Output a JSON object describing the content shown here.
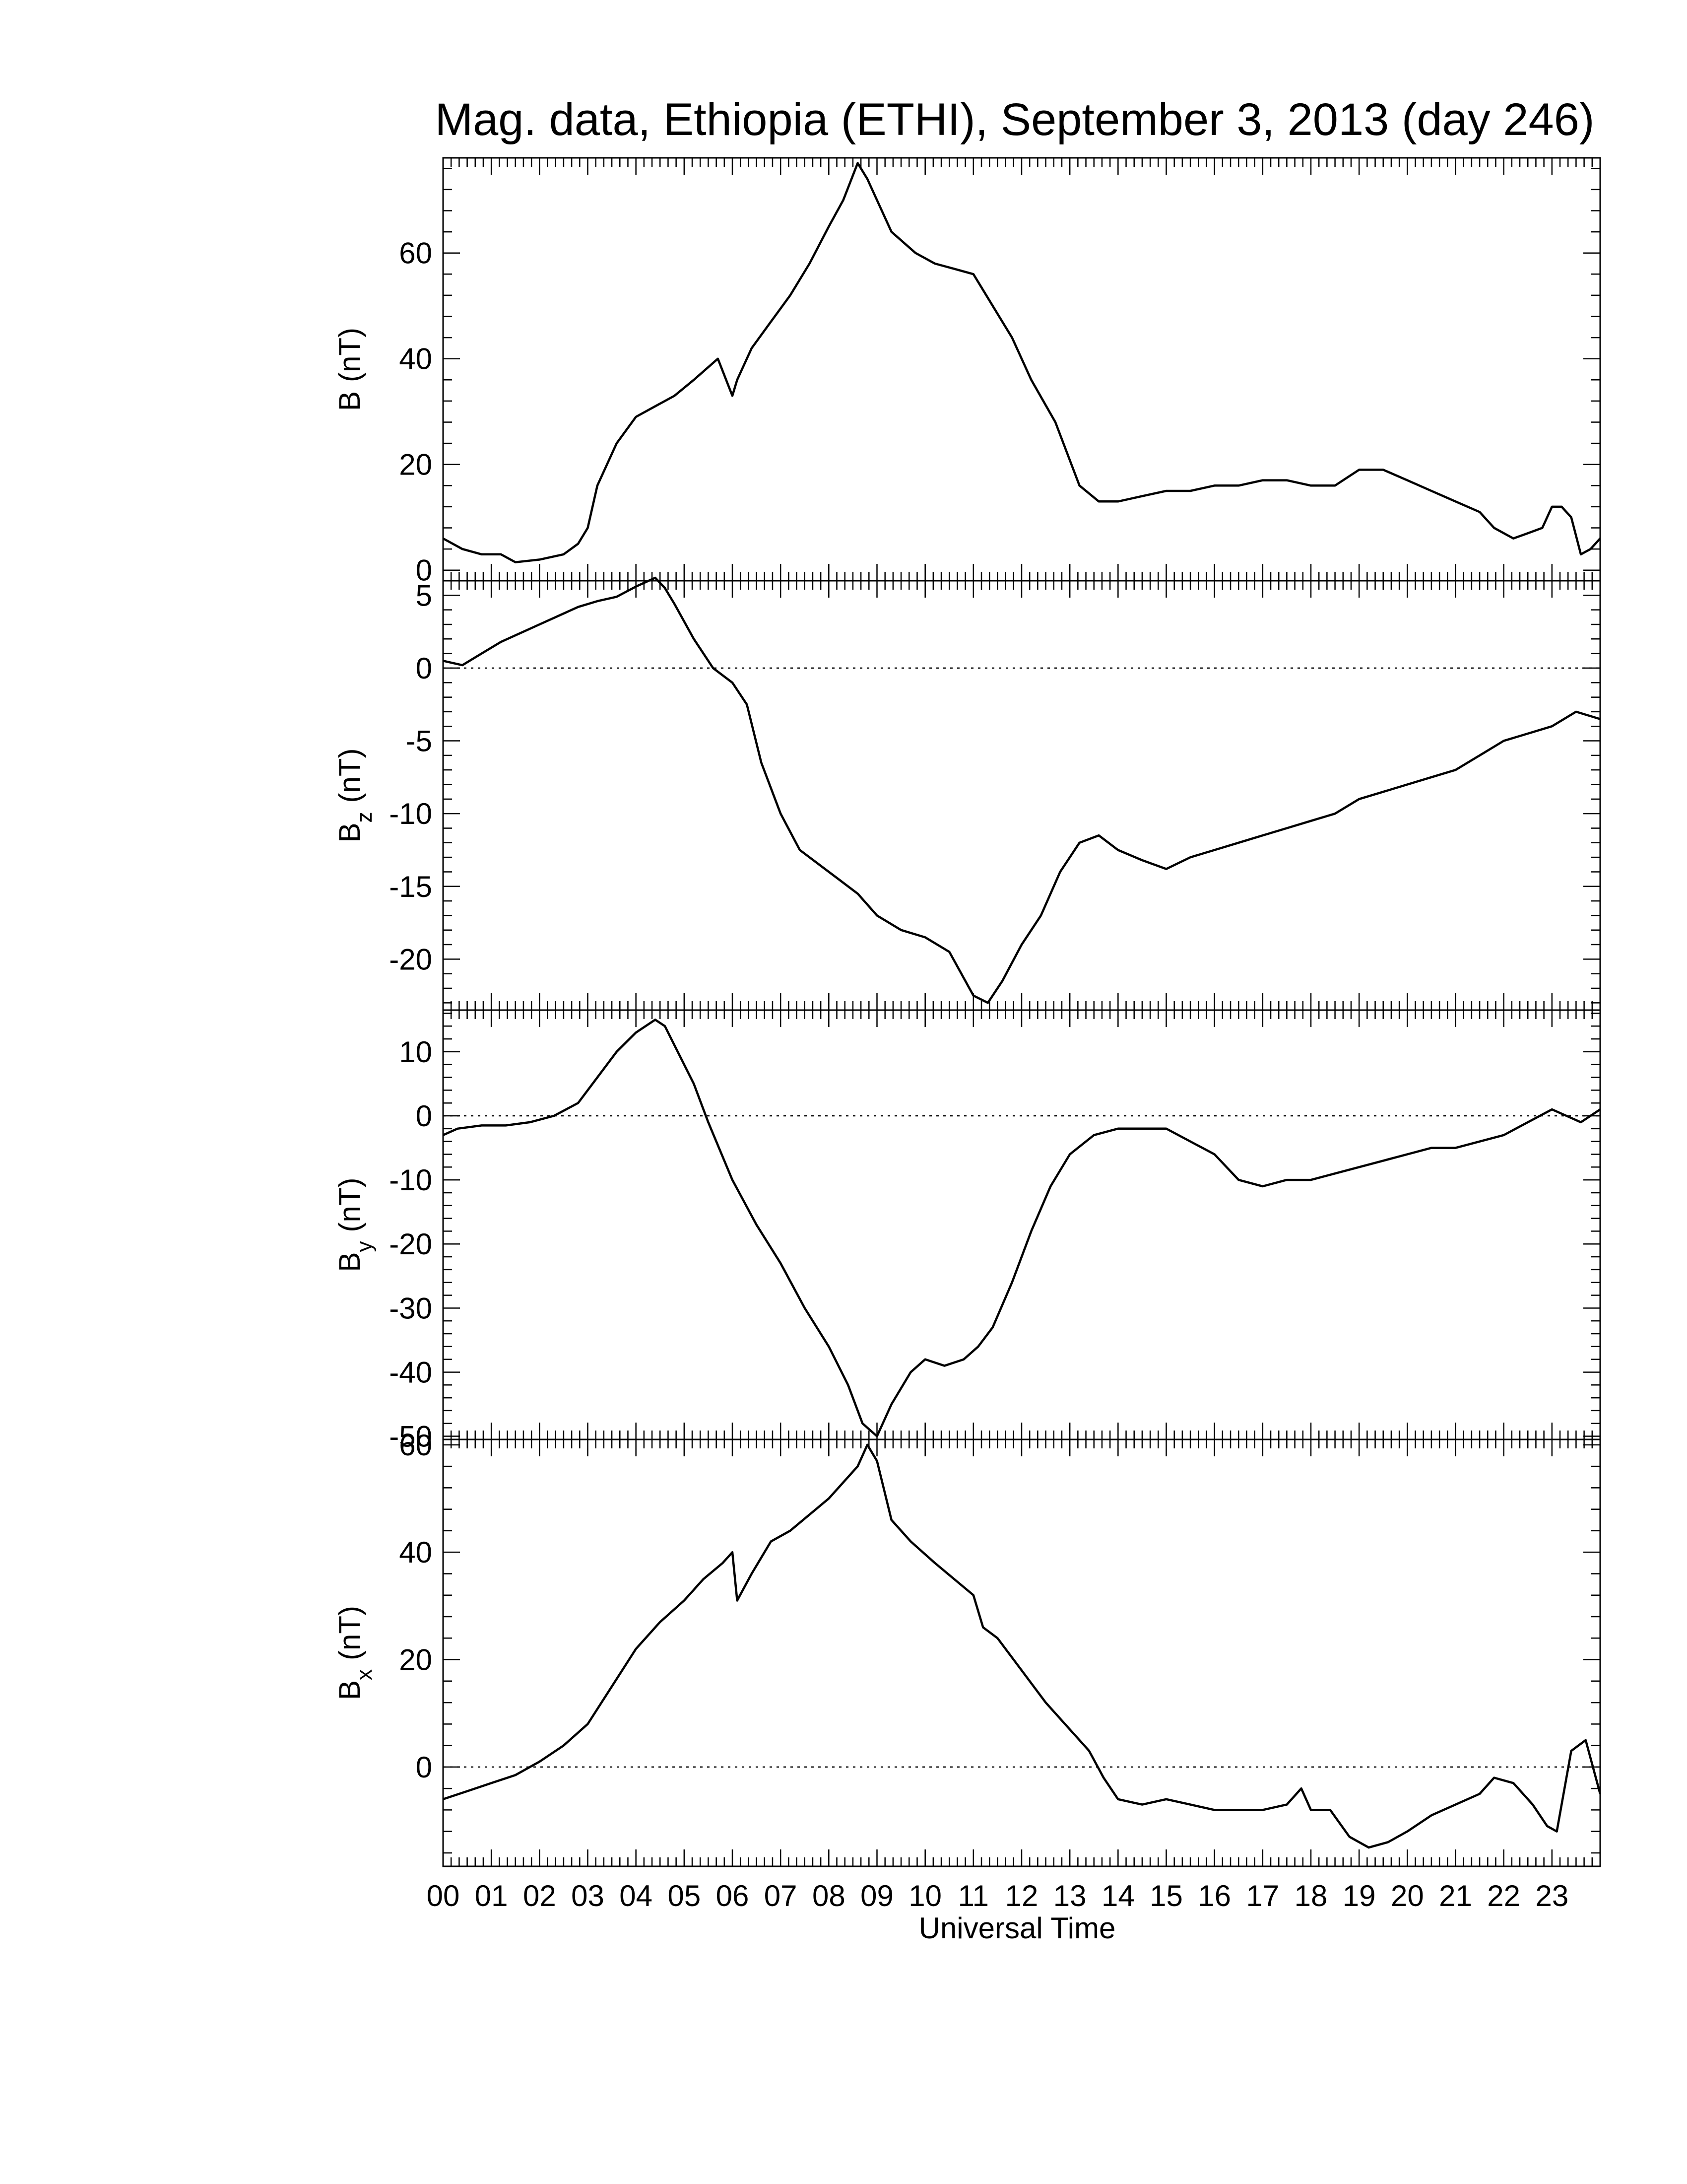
{
  "chart_data": {
    "type": "line",
    "title": "Mag. data, Ethiopia (ETHI), September 3, 2013 (day 246)",
    "xlabel": "Universal Time",
    "x_range": [
      0,
      24
    ],
    "x_tick_labels": [
      "00",
      "01",
      "02",
      "03",
      "04",
      "05",
      "06",
      "07",
      "08",
      "09",
      "10",
      "11",
      "12",
      "13",
      "14",
      "15",
      "16",
      "17",
      "18",
      "19",
      "20",
      "21",
      "22",
      "23"
    ],
    "panels": [
      {
        "id": "B",
        "ylabel_main": "B",
        "ylabel_sub": "",
        "ylabel_unit": "(nT)",
        "ylim": [
          -2,
          78
        ],
        "yticks": [
          0,
          20,
          40,
          60
        ],
        "ytick_labels": [
          "0",
          "20",
          "40",
          "60"
        ],
        "zero_line": false,
        "series": [
          {
            "x": [
              0,
              0.4,
              0.8,
              1.2,
              1.5,
              2,
              2.5,
              2.8,
              3,
              3.2,
              3.6,
              4,
              4.4,
              4.8,
              5.2,
              5.7,
              6,
              6.1,
              6.4,
              6.8,
              7.2,
              7.6,
              8,
              8.3,
              8.6,
              8.8,
              9,
              9.3,
              9.8,
              10.2,
              10.6,
              11,
              11.4,
              11.8,
              12.2,
              12.7,
              13.2,
              13.6,
              14,
              14.5,
              15,
              15.5,
              16,
              16.5,
              17,
              17.5,
              18,
              18.5,
              19,
              19.5,
              20,
              20.5,
              21,
              21.5,
              21.8,
              22.2,
              22.5,
              22.8,
              23,
              23.2,
              23.4,
              23.6,
              23.8,
              24
            ],
            "y": [
              6,
              4,
              3,
              3,
              1.5,
              2,
              3,
              5,
              8,
              16,
              24,
              29,
              31,
              33,
              36,
              40,
              33,
              36,
              42,
              47,
              52,
              58,
              65,
              70,
              77,
              74,
              70,
              64,
              60,
              58,
              57,
              56,
              50,
              44,
              36,
              28,
              16,
              13,
              13,
              14,
              15,
              15,
              16,
              16,
              17,
              17,
              16,
              16,
              19,
              19,
              17,
              15,
              13,
              11,
              8,
              6,
              7,
              8,
              12,
              12,
              10,
              3,
              4,
              6
            ]
          }
        ]
      },
      {
        "id": "Bz",
        "ylabel_main": "B",
        "ylabel_sub": "z",
        "ylabel_unit": "(nT)",
        "ylim": [
          -23.5,
          6
        ],
        "yticks": [
          5,
          0,
          -5,
          -10,
          -15,
          -20
        ],
        "ytick_labels": [
          "5",
          "0",
          "-5",
          "-10",
          "-15",
          "-20"
        ],
        "zero_line": true,
        "series": [
          {
            "x": [
              0,
              0.4,
              0.8,
              1.2,
              1.6,
              2,
              2.4,
              2.8,
              3.2,
              3.6,
              4,
              4.4,
              4.6,
              4.8,
              5.2,
              5.6,
              6,
              6.3,
              6.6,
              7,
              7.4,
              7.8,
              8.2,
              8.6,
              9,
              9.5,
              10,
              10.5,
              11,
              11.3,
              11.6,
              12,
              12.4,
              12.8,
              13.2,
              13.6,
              14,
              14.5,
              15,
              15.5,
              16,
              16.5,
              17,
              17.5,
              18,
              18.5,
              19,
              19.5,
              20,
              20.5,
              21,
              21.5,
              22,
              22.5,
              23,
              23.5,
              24
            ],
            "y": [
              0.5,
              0.2,
              1,
              1.8,
              2.4,
              3,
              3.6,
              4.2,
              4.6,
              4.9,
              5.6,
              6.2,
              5.5,
              4.4,
              2,
              0,
              -1,
              -2.5,
              -6.5,
              -10,
              -12.5,
              -13.5,
              -14.5,
              -15.5,
              -17,
              -18,
              -18.5,
              -19.5,
              -22.5,
              -23,
              -21.5,
              -19,
              -17,
              -14,
              -12,
              -11.5,
              -12.5,
              -13.2,
              -13.8,
              -13,
              -12.5,
              -12,
              -11.5,
              -11,
              -10.5,
              -10,
              -9,
              -8.5,
              -8,
              -7.5,
              -7,
              -6,
              -5,
              -4.5,
              -4,
              -3,
              -3.5
            ]
          }
        ]
      },
      {
        "id": "By",
        "ylabel_main": "B",
        "ylabel_sub": "y",
        "ylabel_unit": "(nT)",
        "ylim": [
          -50.5,
          16.5
        ],
        "yticks": [
          10,
          0,
          -10,
          -20,
          -30,
          -40,
          -50
        ],
        "ytick_labels": [
          "10",
          "0",
          "-10",
          "-20",
          "-30",
          "-40",
          "-50"
        ],
        "zero_line": true,
        "series": [
          {
            "x": [
              0,
              0.3,
              0.8,
              1.3,
              1.8,
              2.3,
              2.8,
              3.2,
              3.6,
              4,
              4.4,
              4.6,
              4.8,
              5.2,
              5.5,
              6,
              6.5,
              7,
              7.5,
              8,
              8.4,
              8.7,
              9,
              9.3,
              9.7,
              10,
              10.4,
              10.8,
              11.1,
              11.4,
              11.8,
              12.2,
              12.6,
              13,
              13.5,
              14,
              14.5,
              15,
              15.5,
              16,
              16.5,
              17,
              17.5,
              18,
              18.5,
              19,
              19.5,
              20,
              20.5,
              21,
              21.5,
              22,
              22.5,
              23,
              23.3,
              23.6,
              24
            ],
            "y": [
              -3,
              -2,
              -1.5,
              -1.5,
              -1,
              0,
              2,
              6,
              10,
              13,
              15,
              14,
              11,
              5,
              -1,
              -10,
              -17,
              -23,
              -30,
              -36,
              -42,
              -48,
              -50,
              -45,
              -40,
              -38,
              -39,
              -38,
              -36,
              -33,
              -26,
              -18,
              -11,
              -6,
              -3,
              -2,
              -2,
              -2,
              -4,
              -6,
              -10,
              -11,
              -10,
              -10,
              -9,
              -8,
              -7,
              -6,
              -5,
              -5,
              -4,
              -3,
              -1,
              1,
              0,
              -1,
              1
            ]
          }
        ]
      },
      {
        "id": "Bx",
        "ylabel_main": "B",
        "ylabel_sub": "x",
        "ylabel_unit": "(nT)",
        "ylim": [
          -18.5,
          61
        ],
        "yticks": [
          0,
          20,
          40,
          60
        ],
        "ytick_labels": [
          "0",
          "20",
          "40",
          "60"
        ],
        "zero_line": true,
        "series": [
          {
            "x": [
              0,
              0.5,
              1,
              1.5,
              2,
              2.5,
              3,
              3.5,
              4,
              4.5,
              5,
              5.4,
              5.8,
              6,
              6.1,
              6.4,
              6.8,
              7.2,
              7.6,
              8,
              8.3,
              8.6,
              8.8,
              9,
              9.3,
              9.7,
              10.2,
              10.6,
              11,
              11.2,
              11.5,
              12,
              12.5,
              13,
              13.4,
              13.7,
              14,
              14.5,
              15,
              15.5,
              16,
              16.5,
              17,
              17.5,
              17.8,
              18,
              18.4,
              18.8,
              19.2,
              19.6,
              20,
              20.5,
              21,
              21.5,
              21.8,
              22.2,
              22.6,
              22.9,
              23.1,
              23.4,
              23.7,
              24
            ],
            "y": [
              -6,
              -4.5,
              -3,
              -1.5,
              1,
              4,
              8,
              15,
              22,
              27,
              31,
              35,
              38,
              40,
              31,
              36,
              42,
              44,
              47,
              50,
              53,
              56,
              60,
              57,
              46,
              42,
              38,
              35,
              32,
              26,
              24,
              18,
              12,
              7,
              3,
              -2,
              -6,
              -7,
              -6,
              -7,
              -8,
              -8,
              -8,
              -7,
              -4,
              -8,
              -8,
              -13,
              -15,
              -14,
              -12,
              -9,
              -7,
              -5,
              -2,
              -3,
              -7,
              -11,
              -12,
              3,
              5,
              -5
            ]
          }
        ]
      }
    ]
  }
}
